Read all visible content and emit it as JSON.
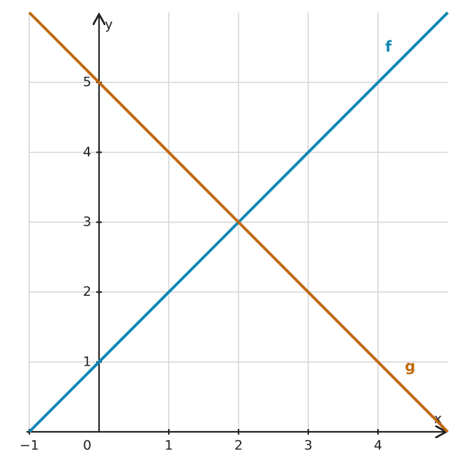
{
  "chart_data": {
    "type": "line",
    "x_label": "x",
    "y_label": "y",
    "x": [
      -1,
      0,
      1,
      2,
      3,
      4,
      5
    ],
    "series": [
      {
        "name": "f",
        "color": "#0f87b5",
        "values": [
          0,
          1,
          2,
          3,
          4,
          5,
          6
        ]
      },
      {
        "name": "g",
        "color": "#c0680c",
        "values": [
          6,
          5,
          4,
          3,
          2,
          1,
          0
        ]
      }
    ],
    "xlim": [
      -1,
      5
    ],
    "ylim": [
      0,
      6
    ],
    "xticks": [
      {
        "value": -1,
        "label": "−1"
      },
      0,
      1,
      2,
      3,
      4
    ],
    "yticks": [
      1,
      2,
      3,
      4,
      5
    ],
    "grid": true
  }
}
